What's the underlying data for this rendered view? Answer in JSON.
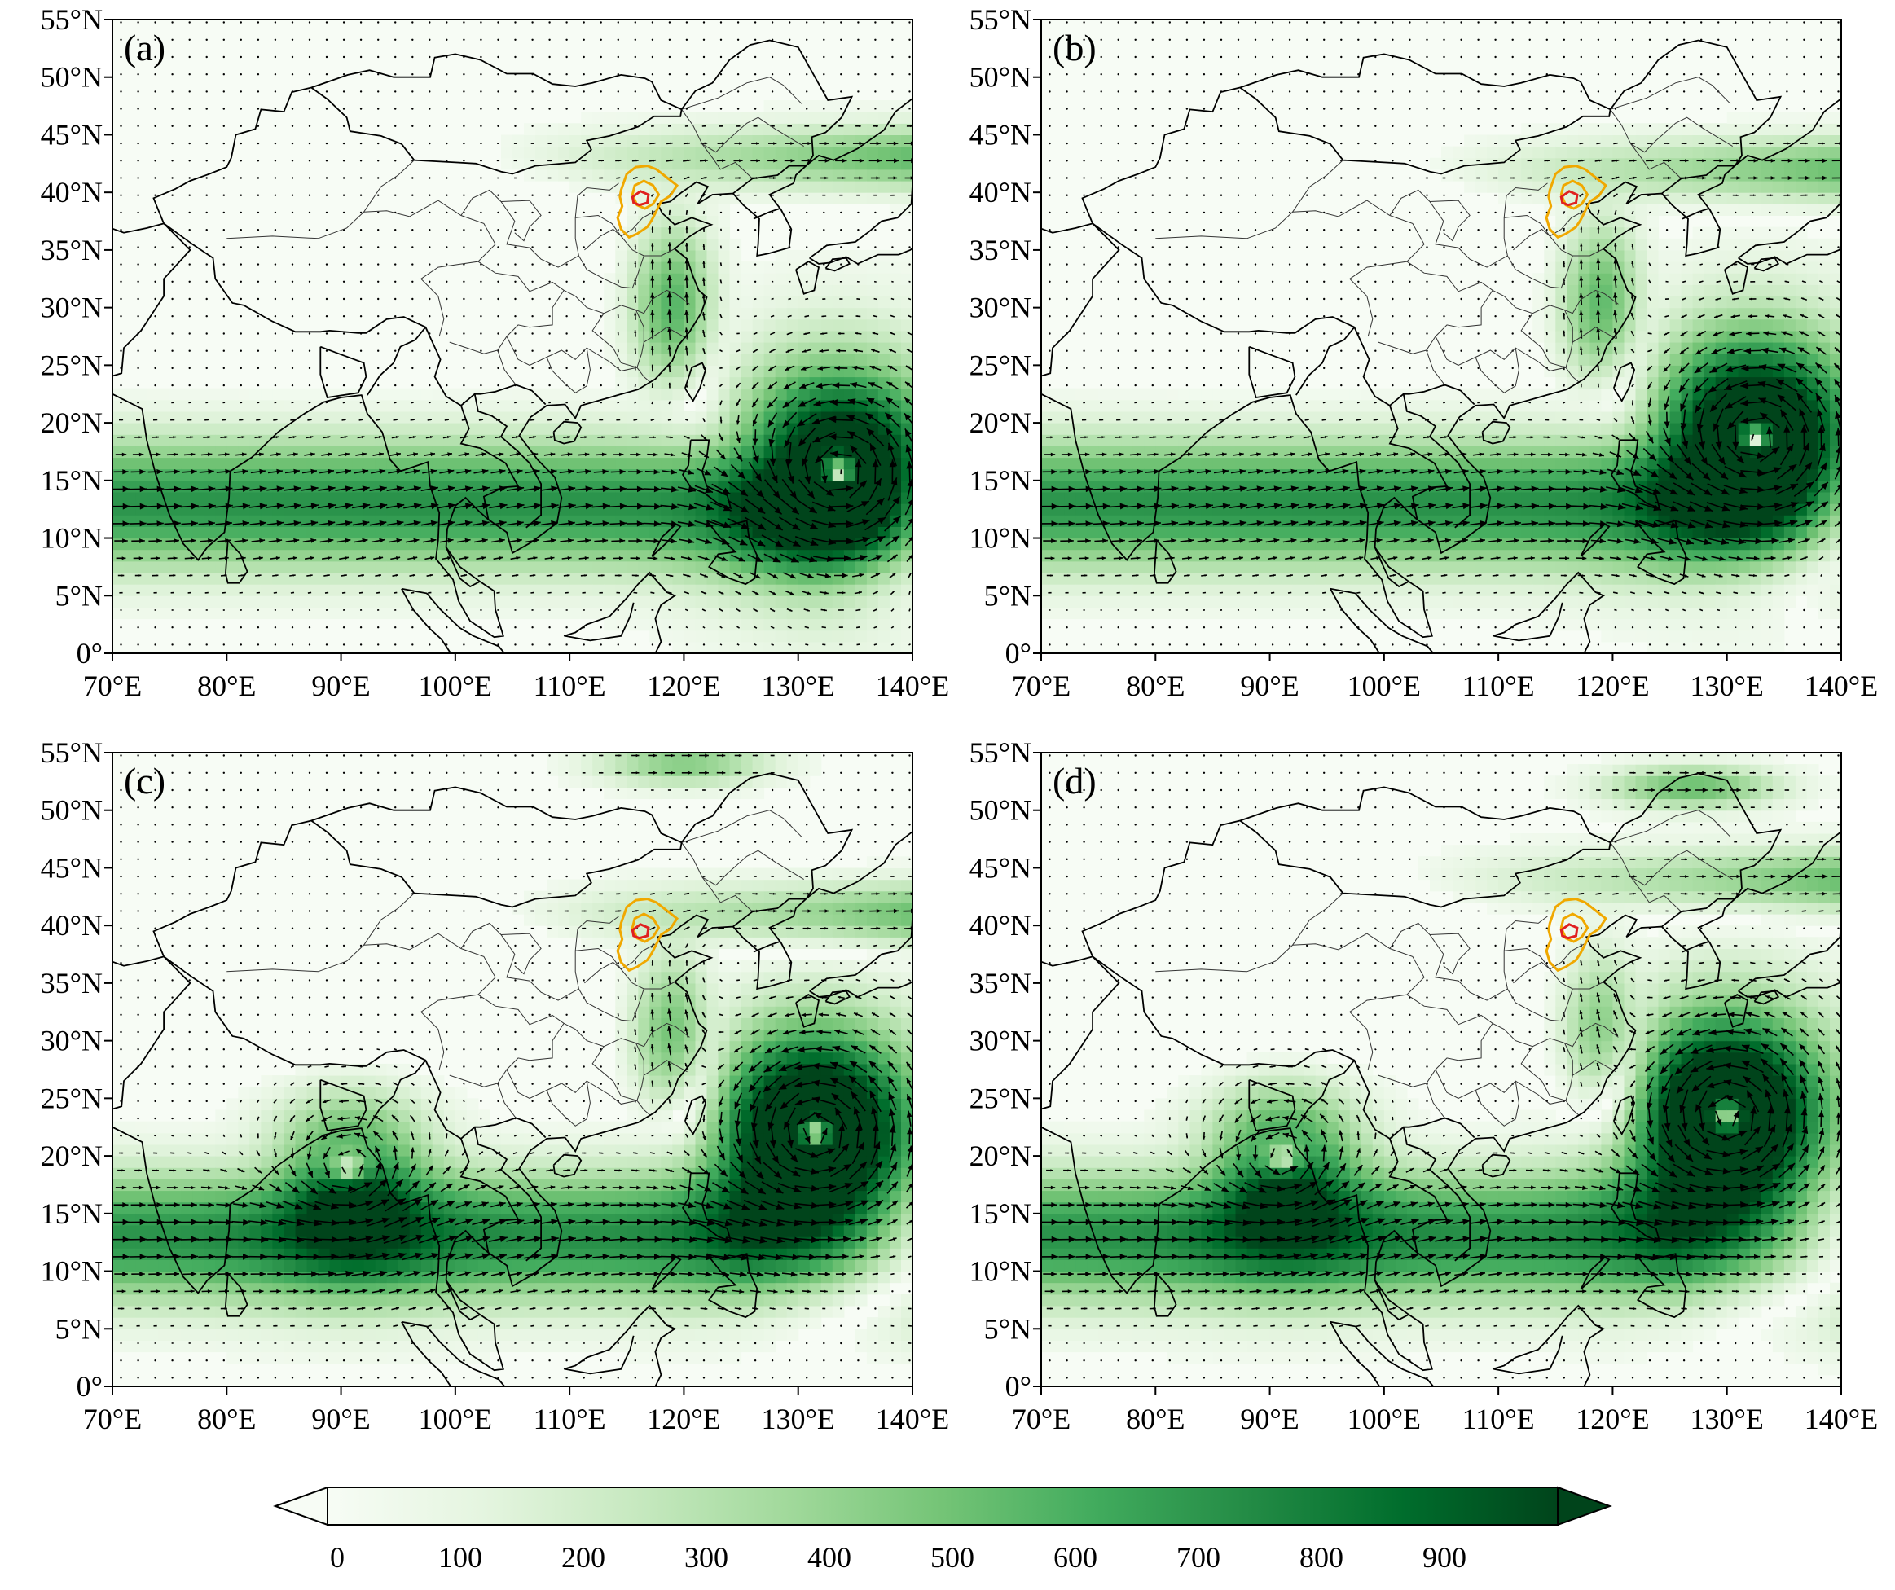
{
  "figure": {
    "panels": [
      {
        "label": "(a)",
        "cyclones": [
          {
            "lon": 133.5,
            "lat": 15.5,
            "strength": 1.0
          }
        ],
        "midlat_jet_lat": 43,
        "extra_jets": []
      },
      {
        "label": "(b)",
        "cyclones": [
          {
            "lon": 132.5,
            "lat": 18.5,
            "strength": 1.0
          }
        ],
        "midlat_jet_lat": 42,
        "extra_jets": []
      },
      {
        "label": "(c)",
        "cyclones": [
          {
            "lon": 131.5,
            "lat": 22.0,
            "strength": 1.0
          },
          {
            "lon": 90.8,
            "lat": 18.5,
            "strength": 0.55
          }
        ],
        "midlat_jet_lat": 41,
        "extra_jets": [
          {
            "lon": 120,
            "lat": 54,
            "strength": 0.6
          }
        ]
      },
      {
        "label": "(d)",
        "cyclones": [
          {
            "lon": 130.0,
            "lat": 23.5,
            "strength": 1.0
          },
          {
            "lon": 91.2,
            "lat": 19.5,
            "strength": 0.55
          }
        ],
        "midlat_jet_lat": 44,
        "extra_jets": [
          {
            "lon": 127,
            "lat": 52,
            "strength": 0.7
          }
        ]
      }
    ],
    "map_extent": {
      "lon_min": 70,
      "lon_max": 140,
      "lat_min": 0,
      "lat_max": 55
    },
    "x_ticks": [
      "70°E",
      "80°E",
      "90°E",
      "100°E",
      "110°E",
      "120°E",
      "130°E",
      "140°E"
    ],
    "y_ticks": [
      "0°",
      "5°N",
      "10°N",
      "15°N",
      "20°N",
      "25°N",
      "30°N",
      "35°N",
      "40°N",
      "45°N",
      "50°N",
      "55°N"
    ],
    "colorbar": {
      "ticks": [
        "0",
        "100",
        "200",
        "300",
        "400",
        "500",
        "600",
        "700",
        "800",
        "900"
      ],
      "range": [
        0,
        1000
      ],
      "extend": "both",
      "colors": [
        "#f7fcf5",
        "#e5f5e0",
        "#c7e9c0",
        "#a1d99b",
        "#74c476",
        "#41ab5d",
        "#238b45",
        "#006d2c",
        "#00441b"
      ]
    },
    "contour_colors": {
      "outer": "#f0a800",
      "inner": "#e02020"
    },
    "vector_color": "#000000",
    "coast_color": "#000000"
  }
}
